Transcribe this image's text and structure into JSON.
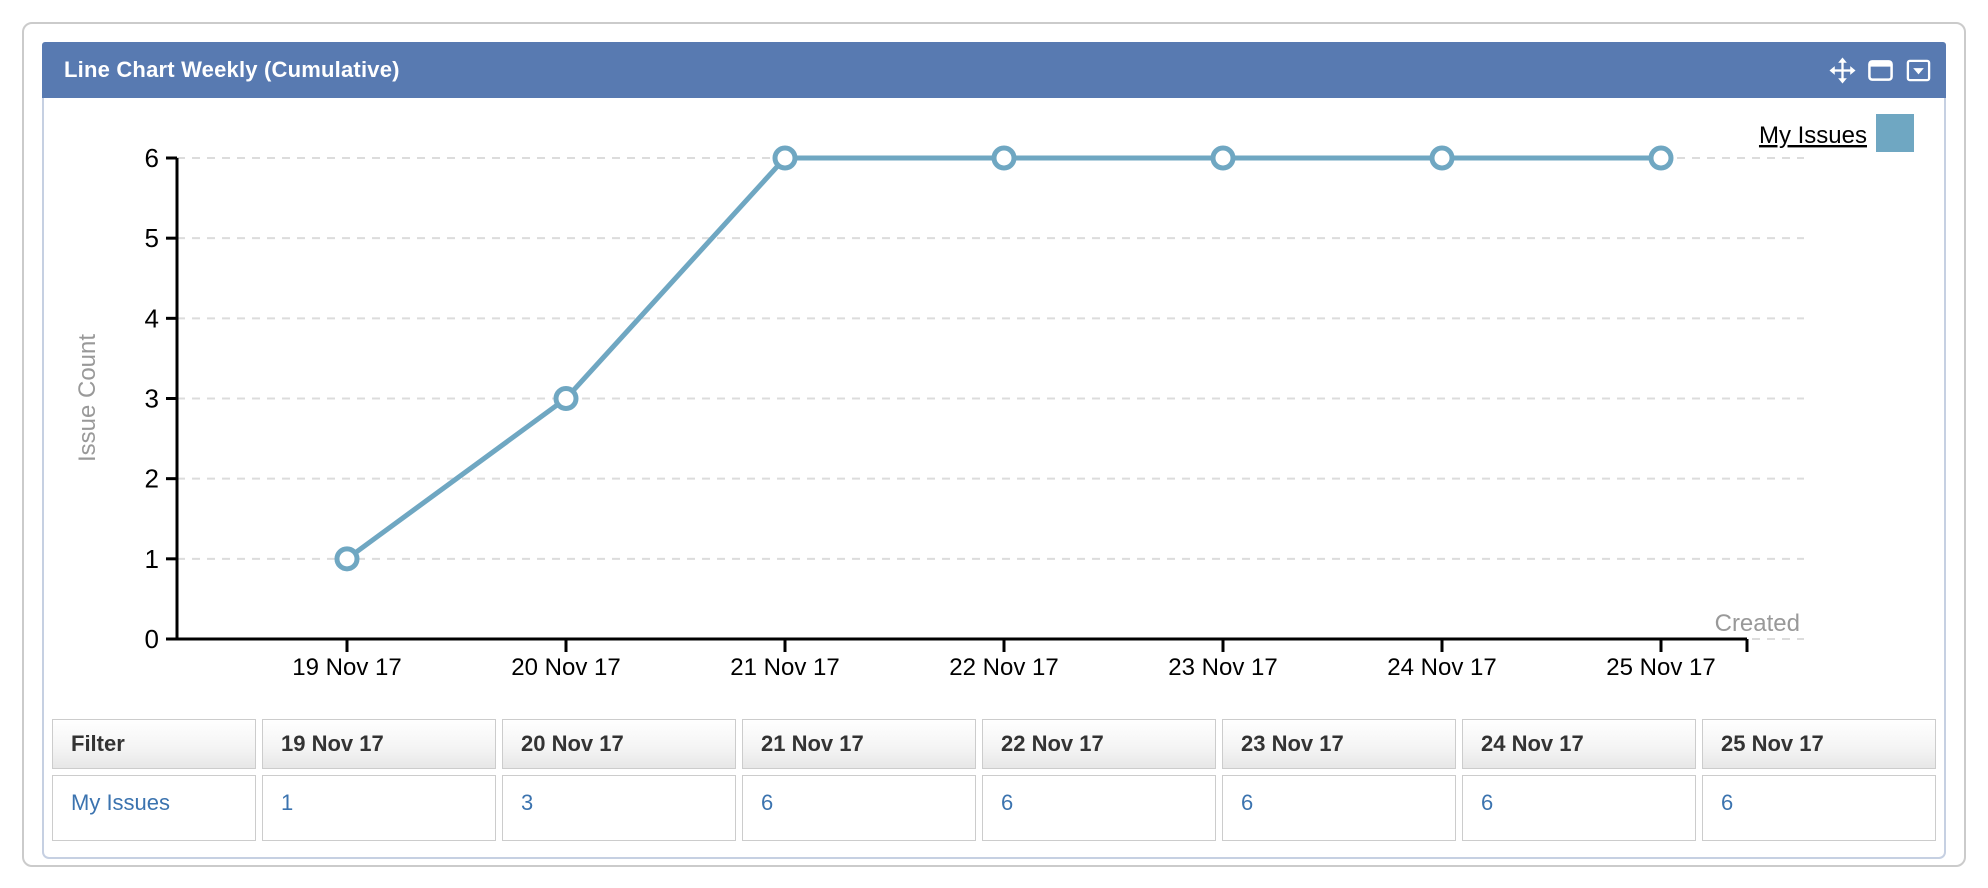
{
  "gadget": {
    "title": "Line Chart Weekly (Cumulative)",
    "header_icons": [
      "move-icon",
      "maximize-icon",
      "dropdown-icon"
    ],
    "colors": {
      "header_bg": "#587ab1",
      "frame_border": "#c6d0e2",
      "line": "#6fa7c2",
      "grid": "#dcdcdc",
      "axis": "#000000",
      "muted_text": "#999999",
      "link": "#3b73af"
    }
  },
  "chart_data": {
    "type": "line",
    "categories": [
      "19 Nov 17",
      "20 Nov 17",
      "21 Nov 17",
      "22 Nov 17",
      "23 Nov 17",
      "24 Nov 17",
      "25 Nov 17"
    ],
    "series": [
      {
        "name": "My Issues",
        "values": [
          1,
          3,
          6,
          6,
          6,
          6,
          6
        ]
      }
    ],
    "title": "",
    "xlabel": "Created",
    "ylabel": "Issue Count",
    "ylim": [
      0,
      6
    ],
    "yticks": [
      0,
      1,
      2,
      3,
      4,
      5,
      6
    ],
    "grid": "horizontal-dashed",
    "legend_position": "top-right",
    "marker": "open-circle"
  },
  "table": {
    "columns": [
      "Filter",
      "19 Nov 17",
      "20 Nov 17",
      "21 Nov 17",
      "22 Nov 17",
      "23 Nov 17",
      "24 Nov 17",
      "25 Nov 17"
    ],
    "rows": [
      {
        "label": "My Issues",
        "values": [
          "1",
          "3",
          "6",
          "6",
          "6",
          "6",
          "6"
        ]
      }
    ]
  }
}
